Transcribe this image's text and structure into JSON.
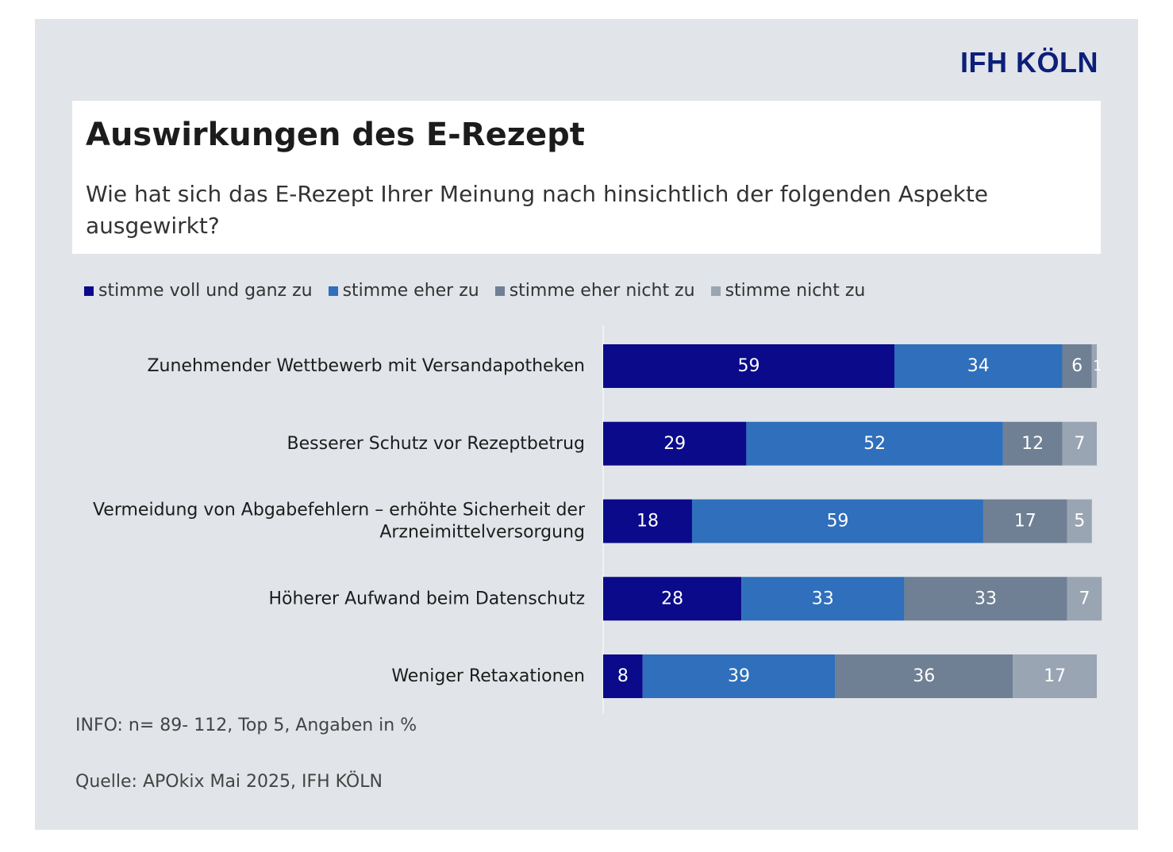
{
  "brand": "IFH KÖLN",
  "title": "Auswirkungen des E-Rezept",
  "subtitle": "Wie hat sich das E-Rezept Ihrer Meinung nach hinsichtlich der folgenden Aspekte ausgewirkt?",
  "info": "INFO: n= 89- 112, Top 5, Angaben in %",
  "source": "Quelle: APOkix Mai 2025, IFH KÖLN",
  "chart_data": {
    "type": "bar",
    "orientation": "horizontal",
    "stacked": true,
    "unit": "%",
    "legend_position": "top",
    "grid": false,
    "xlim": [
      0,
      100
    ],
    "categories": [
      "Zunehmender Wettbewerb mit Versandapotheken",
      "Besserer Schutz vor Rezeptbetrug",
      "Vermeidung von Abgabefehlern – erhöhte Sicherheit der Arzneimittelversorgung",
      "Höherer Aufwand beim Datenschutz",
      "Weniger Retaxationen"
    ],
    "category_lines": [
      [
        "Zunehmender Wettbewerb mit Versandapotheken"
      ],
      [
        "Besserer Schutz vor Rezeptbetrug"
      ],
      [
        "Vermeidung von Abgabefehlern – erhöhte Sicherheit der",
        "Arzneimittelversorgung"
      ],
      [
        "Höherer Aufwand beim Datenschutz"
      ],
      [
        "Weniger Retaxationen"
      ]
    ],
    "series": [
      {
        "name": "stimme voll und ganz zu",
        "color": "#0a0a8a",
        "values": [
          59,
          29,
          18,
          28,
          8
        ]
      },
      {
        "name": "stimme eher zu",
        "color": "#2f6fbb",
        "values": [
          34,
          52,
          59,
          33,
          39
        ]
      },
      {
        "name": "stimme eher nicht zu",
        "color": "#6f7f94",
        "values": [
          6,
          12,
          17,
          33,
          36
        ]
      },
      {
        "name": "stimme nicht zu",
        "color": "#9aa5b3",
        "values": [
          1,
          7,
          5,
          7,
          17
        ]
      }
    ]
  }
}
